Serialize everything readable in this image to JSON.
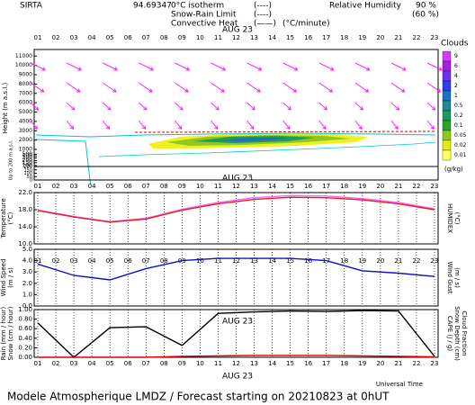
{
  "header": {
    "station": "SIRTA",
    "code": "94.69347",
    "legend": [
      {
        "name": "0°C isotherm",
        "style": "(----)",
        "color": "#e020e0"
      },
      {
        "name": "Snow-Rain Limit",
        "style": "(----)",
        "color": "#e020e0"
      },
      {
        "name": "Convective Heat",
        "style": "(——)",
        "unit": "(°C/minute)",
        "color": "#e00000"
      }
    ],
    "humidity": {
      "name": "Relative Humidity",
      "high": "90 %",
      "low": "(60 %)",
      "color": "#00c8c8"
    }
  },
  "date_label": "AUG 23",
  "xlim": [
    1,
    23
  ],
  "xticks": [
    {
      "value": 1,
      "label": "01"
    },
    {
      "value": 2,
      "label": "02"
    },
    {
      "value": 3,
      "label": "03"
    },
    {
      "value": 4,
      "label": "04"
    },
    {
      "value": 5,
      "label": "05"
    },
    {
      "value": 6,
      "label": "06"
    },
    {
      "value": 7,
      "label": "07"
    },
    {
      "value": 8,
      "label": "08"
    },
    {
      "value": 9,
      "label": "09"
    },
    10,
    11,
    12,
    13,
    14,
    15,
    16,
    17,
    18,
    19,
    20,
    21,
    22,
    23
  ],
  "x_axis_label": "Universal Time",
  "footer": "Modele Atmospherique LMDZ / Forecast starting on 20210823 at 0hUT",
  "chart_data": [
    {
      "type": "contour",
      "ylabel": [
        {
          "text": "Height (m a.s.l.)",
          "color": "#000000"
        }
      ],
      "ylim": [
        100,
        11700
      ],
      "ybreak": 1000,
      "yticks": [
        100,
        150,
        200,
        300,
        400,
        500,
        1000,
        2000,
        3000,
        4000,
        5000,
        6000,
        7000,
        8000,
        9000,
        10000,
        11000
      ],
      "sub_label": "Up to 200 m a.s.l.",
      "sub_ylim": [
        0,
        200
      ],
      "sub_yticks": [
        0,
        50,
        100,
        150,
        200
      ],
      "arrow_color": "#ff20ff",
      "colorbar": {
        "label": "Clouds",
        "unit": "(g/kg)",
        "levels": [
          9,
          6,
          4,
          2,
          1,
          0.5,
          0.2,
          0.1,
          0.05,
          0.02,
          0.01
        ],
        "colors": [
          "#d040f0",
          "#a020e0",
          "#7030f0",
          "#3040f0",
          "#2070c0",
          "#208890",
          "#209860",
          "#30a030",
          "#90c820",
          "#e0e820",
          "#ffff60"
        ]
      }
    },
    {
      "type": "line",
      "ylabel": [
        {
          "text": "Temperature",
          "color": "#e00000"
        },
        {
          "text": "(°C)",
          "color": "#e00000"
        }
      ],
      "y2label": [
        {
          "text": "HUMIDEX",
          "color": "#ff40ff"
        },
        {
          "text": "(°C)",
          "color": "#ff40ff"
        }
      ],
      "ylim": [
        10,
        22
      ],
      "yticks": [
        {
          "value": 10,
          "label": "10.0"
        },
        {
          "value": 14,
          "label": "14.0"
        },
        {
          "value": 18,
          "label": "18.0"
        },
        {
          "value": 22,
          "label": "22.0"
        }
      ],
      "x": [
        1,
        3,
        5,
        7,
        9,
        11,
        13,
        15,
        17,
        19,
        21,
        23
      ],
      "series": [
        {
          "color": "#ff60ff",
          "values": [
            17.9,
            16.4,
            15.2,
            16.0,
            18.1,
            19.7,
            20.8,
            21.3,
            21.2,
            20.6,
            19.7,
            18.2
          ]
        },
        {
          "color": "#e02020",
          "values": [
            17.8,
            16.3,
            15.1,
            15.8,
            17.9,
            19.4,
            20.4,
            20.9,
            20.8,
            20.3,
            19.4,
            18.0
          ]
        }
      ]
    },
    {
      "type": "line",
      "ylabel": [
        {
          "text": "Wind Speed",
          "color": "#1010c0"
        },
        {
          "text": "(m / s)",
          "color": "#1010c0"
        }
      ],
      "y2label": [
        {
          "text": "Wind Gust",
          "color": "#1010c0"
        },
        {
          "text": "(m / s)",
          "color": "#1010c0"
        }
      ],
      "ylim": [
        0,
        5
      ],
      "yticks": [
        {
          "value": 0,
          "label": "0.0"
        },
        {
          "value": 1,
          "label": "1.0"
        },
        {
          "value": 2,
          "label": "2.0"
        },
        {
          "value": 3,
          "label": "3.0"
        },
        {
          "value": 4,
          "label": "4.0"
        },
        {
          "value": 5,
          "label": "5.0"
        }
      ],
      "x": [
        1,
        3,
        5,
        7,
        9,
        11,
        13,
        15,
        17,
        19,
        21,
        23
      ],
      "series": [
        {
          "color": "#1010c0",
          "values": [
            3.7,
            2.7,
            2.3,
            3.3,
            4.0,
            4.2,
            4.2,
            4.2,
            4.0,
            3.1,
            2.9,
            2.6
          ]
        }
      ]
    },
    {
      "type": "line",
      "ylabel": [
        {
          "text": "Rain (mm / hour)",
          "color": "#20c020"
        },
        {
          "text": "Snow (cm / hour)",
          "color": "#2060ff"
        }
      ],
      "y2label": [
        {
          "text": "CAPE (J / g)",
          "color": "#e00000"
        },
        {
          "text": "Snow Depth (cm)",
          "color": "#2060ff"
        },
        {
          "text": "Cloud Fraction",
          "color": "#000000"
        }
      ],
      "ylim": [
        0,
        1
      ],
      "yticks": [
        {
          "value": 0,
          "label": "0.00"
        },
        {
          "value": 0.2,
          "label": "0.20"
        },
        {
          "value": 0.4,
          "label": "0.40"
        },
        {
          "value": 0.6,
          "label": "0.60"
        },
        {
          "value": 0.8,
          "label": "0.80"
        },
        {
          "value": 1,
          "label": "1.00"
        }
      ],
      "x": [
        1,
        3,
        5,
        7,
        9,
        11,
        13,
        15,
        17,
        19,
        21,
        23
      ],
      "series": [
        {
          "color": "#000000",
          "values": [
            0.72,
            0.0,
            0.62,
            0.64,
            0.25,
            0.92,
            0.95,
            0.97,
            0.96,
            0.98,
            0.97,
            0.02
          ]
        },
        {
          "color": "#e00000",
          "values": [
            0.0,
            0.0,
            0.0,
            0.0,
            0.02,
            0.03,
            0.04,
            0.04,
            0.04,
            0.03,
            0.02,
            0.01
          ]
        }
      ]
    }
  ]
}
